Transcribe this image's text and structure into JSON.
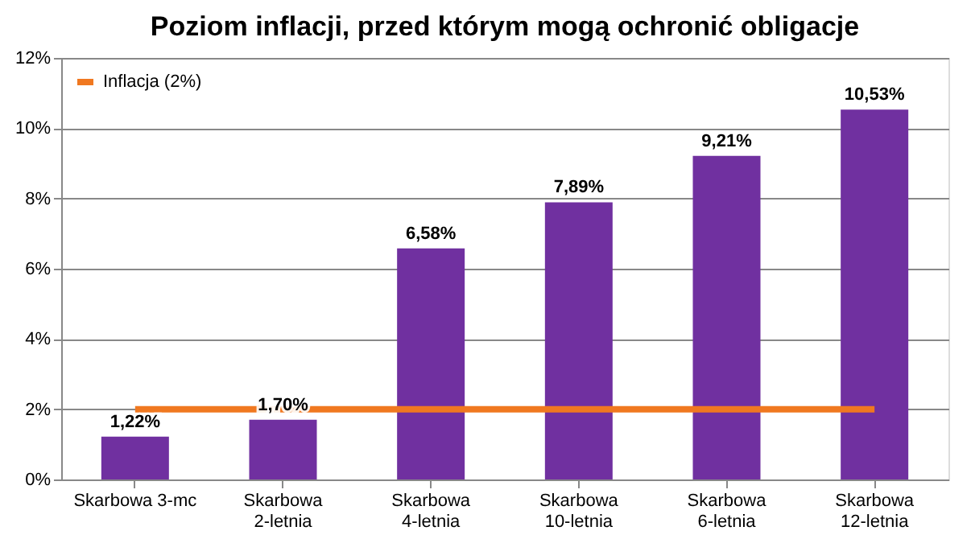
{
  "chart_data": {
    "type": "bar",
    "title": "Poziom inflacji, przed którym mogą ochronić obligacje",
    "categories": [
      "Skarbowa 3-mc",
      "Skarbowa 2-letnia",
      "Skarbowa 4-letnia",
      "Skarbowa 10-letnia",
      "Skarbowa 6-letnia",
      "Skarbowa 12-letnia"
    ],
    "values": [
      1.22,
      1.7,
      6.58,
      7.89,
      9.21,
      10.53
    ],
    "value_labels": [
      "1,22%",
      "1,70%",
      "6,58%",
      "7,89%",
      "9,21%",
      "10,53%"
    ],
    "color": "#7030a0",
    "ylim": [
      0,
      12
    ],
    "yticks": [
      {
        "value": 0,
        "label": "0%"
      },
      {
        "value": 2,
        "label": "2%"
      },
      {
        "value": 4,
        "label": "4%"
      },
      {
        "value": 6,
        "label": "6%"
      },
      {
        "value": 8,
        "label": "8%"
      },
      {
        "value": 10,
        "label": "10%"
      },
      {
        "value": 12,
        "label": "12%"
      }
    ],
    "ref_lines": [
      {
        "axis": "y",
        "value": 2,
        "label": "Inflacja (2%)",
        "color": "#f07820"
      }
    ],
    "grid": "y",
    "legend": "top left"
  }
}
